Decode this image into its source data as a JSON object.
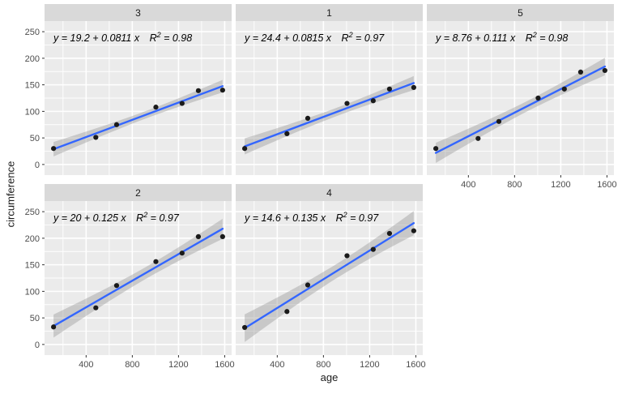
{
  "chart_data": {
    "type": "scatter",
    "title": "",
    "xlabel": "age",
    "ylabel": "circumference",
    "facet_order": [
      "3",
      "1",
      "5",
      "2",
      "4"
    ],
    "facet_rows": 2,
    "facet_cols": 3,
    "x": [
      118,
      484,
      664,
      1004,
      1231,
      1372,
      1582
    ],
    "x_ticks": [
      400,
      800,
      1200,
      1600
    ],
    "y_ticks": [
      0,
      50,
      100,
      150,
      200,
      250
    ],
    "x_domain": [
      40,
      1660
    ],
    "y_domain": [
      -20,
      270
    ],
    "grid": "on",
    "panels": [
      {
        "label": "3",
        "equation": "y = 19.2 + 0.0811 x",
        "r2": "0.98",
        "values": [
          30,
          51,
          75,
          108,
          115,
          139,
          140
        ]
      },
      {
        "label": "1",
        "equation": "y = 24.4 + 0.0815 x",
        "r2": "0.97",
        "values": [
          30,
          58,
          87,
          115,
          120,
          142,
          145
        ]
      },
      {
        "label": "5",
        "equation": "y = 8.76 + 0.111 x",
        "r2": "0.98",
        "values": [
          30,
          49,
          81,
          125,
          142,
          174,
          177
        ]
      },
      {
        "label": "2",
        "equation": "y = 20 + 0.125 x",
        "r2": "0.97",
        "values": [
          33,
          69,
          111,
          156,
          172,
          203,
          203
        ]
      },
      {
        "label": "4",
        "equation": "y = 14.6 + 0.135 x",
        "r2": "0.97",
        "values": [
          32,
          62,
          112,
          167,
          179,
          209,
          214
        ]
      }
    ],
    "colors": {
      "panel_bg": "#ebebeb",
      "strip_bg": "#d9d9d9",
      "strip_text": "#1a1a1a",
      "grid": "#ffffff",
      "regression_line": "#3366ff",
      "confidence_band": "#999999",
      "point": "#1a1a1a",
      "tick_text": "#4d4d4d",
      "tick_mark": "#333333",
      "equation_text": "#000000"
    }
  }
}
